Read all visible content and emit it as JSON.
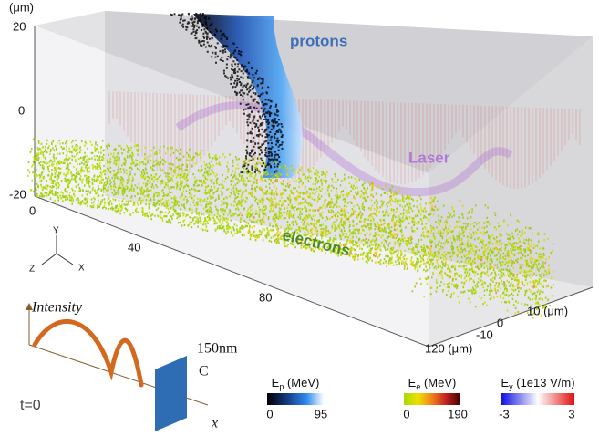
{
  "axes": {
    "unit": "(μm)",
    "vertical_ticks": [
      "20",
      "0",
      "-20"
    ],
    "length_ticks": [
      "0",
      "40",
      "80",
      "120 (μm)"
    ],
    "depth_ticks": [
      "10 (μm)",
      "0",
      "-10"
    ]
  },
  "labels": {
    "protons": "protons",
    "laser": "Laser",
    "electrons": "electrons"
  },
  "triad": {
    "y": "Y",
    "z": "Z",
    "x": "X"
  },
  "inset": {
    "intensity": "Intensity",
    "thickness": "150nm",
    "material": "C",
    "x_axis": "x",
    "time": "t=0"
  },
  "colorbars": [
    {
      "symbol": "E",
      "subscript": "p",
      "unit": " (MeV)",
      "min": "0",
      "max": "95"
    },
    {
      "symbol": "E",
      "subscript": "e",
      "unit": " (MeV)",
      "min": "0",
      "max": "190"
    },
    {
      "symbol": "E",
      "subscript": "y",
      "unit": " (1e13 V/m)",
      "min": "-3",
      "max": "3"
    }
  ]
}
